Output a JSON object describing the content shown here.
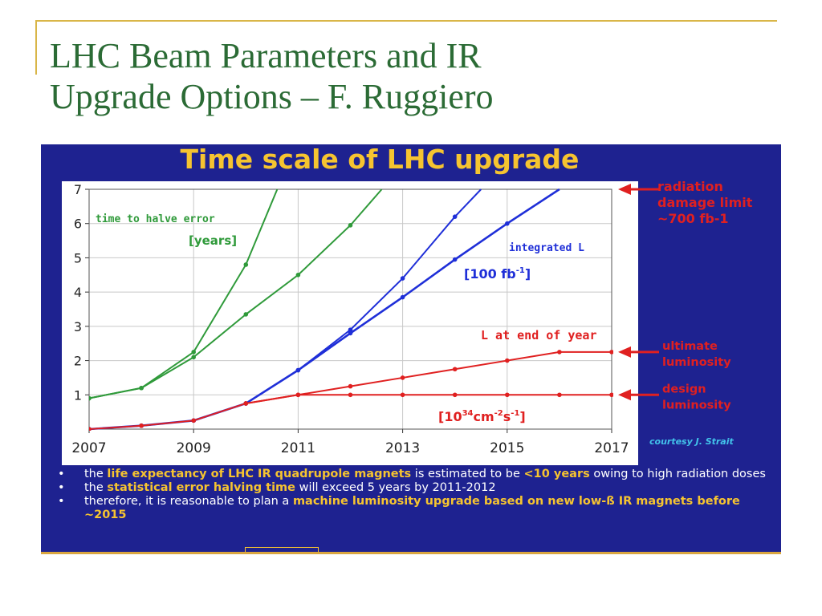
{
  "slide": {
    "title_line1": "LHC Beam Parameters and IR",
    "title_line2": "Upgrade Options – F. Ruggiero"
  },
  "panel": {
    "title": "Time scale of LHC upgrade",
    "courtesy": "courtesy J. Strait"
  },
  "colors": {
    "green": "#2f9a3a",
    "blue": "#1f2fd8",
    "red": "#e02020",
    "panel_bg": "#1e2290",
    "title_gold": "#f6c430"
  },
  "chart_data": {
    "type": "line",
    "x_ticks": [
      "2007",
      "2009",
      "2011",
      "2013",
      "2015",
      "2017"
    ],
    "y_ticks": [
      "1",
      "2",
      "3",
      "4",
      "5",
      "6",
      "7"
    ],
    "xlim": [
      2007,
      2017
    ],
    "ylim": [
      0,
      7
    ],
    "grid": true,
    "series": [
      {
        "name": "time to halve error [years]",
        "color": "green",
        "x": [
          2007,
          2008,
          2009,
          2010,
          2010.6
        ],
        "y": [
          0.9,
          1.2,
          2.25,
          4.8,
          7.0
        ]
      },
      {
        "name": "time to halve error [years]",
        "color": "green",
        "x": [
          2007,
          2008,
          2009,
          2010,
          2011,
          2012,
          2012.6
        ],
        "y": [
          0.9,
          1.2,
          2.1,
          3.35,
          4.5,
          5.95,
          7.0
        ]
      },
      {
        "name": "integrated L [100 fb-1]",
        "color": "blue",
        "x": [
          2007,
          2008,
          2009,
          2010,
          2011,
          2012,
          2013,
          2014,
          2014.5
        ],
        "y": [
          0.0,
          0.1,
          0.25,
          0.75,
          1.72,
          2.9,
          4.4,
          6.2,
          7.0
        ]
      },
      {
        "name": "integrated L [100 fb-1]",
        "color": "blue",
        "x": [
          2007,
          2008,
          2009,
          2010,
          2011,
          2012,
          2013,
          2014,
          2015,
          2016
        ],
        "y": [
          0.0,
          0.1,
          0.25,
          0.75,
          1.72,
          2.8,
          3.85,
          4.95,
          6.0,
          7.0
        ]
      },
      {
        "name": "L at end of year [10^34 cm^-2 s^-1]",
        "color": "red",
        "x": [
          2007,
          2008,
          2009,
          2010,
          2011,
          2012,
          2013,
          2014,
          2015,
          2016,
          2017
        ],
        "y": [
          0.0,
          0.1,
          0.25,
          0.75,
          1.0,
          1.25,
          1.5,
          1.75,
          2.0,
          2.25,
          2.25
        ]
      },
      {
        "name": "L at end of year [10^34 cm^-2 s^-1]",
        "color": "red",
        "x": [
          2010,
          2011,
          2012,
          2013,
          2014,
          2015,
          2016,
          2017
        ],
        "y": [
          0.75,
          1.0,
          1.0,
          1.0,
          1.0,
          1.0,
          1.0,
          1.0
        ]
      }
    ],
    "annotations": {
      "green_label_1": "time to halve error",
      "green_label_2": "[years]",
      "blue_label_1": "integrated L",
      "blue_label_2": "[100 fb",
      "blue_label_sup": "-1",
      "blue_label_end": "]",
      "red_label": "L at end of year",
      "red_unit_open": "[10",
      "red_unit_sup1": "34",
      "red_unit_cm": "cm",
      "red_unit_sup2": "-2",
      "red_unit_s": "s",
      "red_unit_sup3": "-1",
      "red_unit_close": "]"
    },
    "markers": [
      {
        "lines": [
          "radiation",
          "damage limit",
          "~700 fb-1"
        ],
        "at_y": 7
      },
      {
        "lines": [
          "ultimate",
          "luminosity"
        ],
        "at_y": 2.25
      },
      {
        "lines": [
          "design",
          "luminosity"
        ],
        "at_y": 1.0
      }
    ]
  },
  "bullets": [
    {
      "parts": [
        {
          "t": "the ",
          "hl": false
        },
        {
          "t": "life expectancy of LHC IR quadrupole magnets",
          "hl": true
        },
        {
          "t": " is estimated to be ",
          "hl": false
        },
        {
          "t": "<10 years",
          "hl": true
        },
        {
          "t": " owing to high radiation doses",
          "hl": false
        }
      ]
    },
    {
      "parts": [
        {
          "t": "the ",
          "hl": false
        },
        {
          "t": "statistical error halving time",
          "hl": true
        },
        {
          "t": " will exceed 5 years by 2011-2012",
          "hl": false
        }
      ]
    },
    {
      "parts": [
        {
          "t": "therefore, it is reasonable to plan a ",
          "hl": false
        },
        {
          "t": "machine luminosity upgrade based on new low-ß IR magnets before ~2015",
          "hl": true
        }
      ]
    }
  ]
}
